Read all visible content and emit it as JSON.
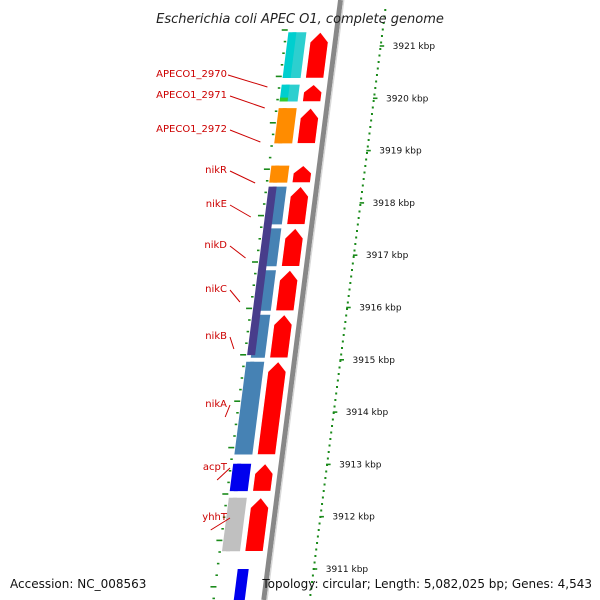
{
  "title": "Escherichia coli APEC O1, complete genome",
  "footer": {
    "accession": "Accession: NC_008563",
    "topology": "Topology: circular; Length: 5,082,025 bp; Genes: 4,543"
  },
  "genes": [
    {
      "name": "APECO1_2970",
      "start": 3920.35,
      "end": 3921.3
    },
    {
      "name": "APECO1_2971",
      "start": 3919.9,
      "end": 3920.3
    },
    {
      "name": "APECO1_2972",
      "start": 3919.1,
      "end": 3919.85
    },
    {
      "name": "nikR",
      "start": 3918.35,
      "end": 3918.75
    },
    {
      "name": "nikE",
      "start": 3917.55,
      "end": 3918.35
    },
    {
      "name": "nikD",
      "start": 3916.75,
      "end": 3917.55
    },
    {
      "name": "nikC",
      "start": 3915.9,
      "end": 3916.75
    },
    {
      "name": "nikB",
      "start": 3915.0,
      "end": 3915.9
    },
    {
      "name": "nikA",
      "start": 3913.15,
      "end": 3915.0
    },
    {
      "name": "acpT",
      "start": 3912.45,
      "end": 3913.05
    },
    {
      "name": "yhhT",
      "start": 3911.3,
      "end": 3912.4
    }
  ],
  "tracks": {
    "cog_outer": [
      {
        "start": 3920.35,
        "end": 3921.3,
        "color": "#2dcfcf"
      },
      {
        "start": 3919.9,
        "end": 3920.3,
        "color": "#2dcfcf"
      },
      {
        "start": 3919.1,
        "end": 3919.85,
        "color": "#ff8c00"
      },
      {
        "start": 3918.35,
        "end": 3918.75,
        "color": "#ff8c00"
      },
      {
        "start": 3917.55,
        "end": 3918.35,
        "color": "#4682b4"
      },
      {
        "start": 3916.75,
        "end": 3917.55,
        "color": "#4682b4"
      },
      {
        "start": 3915.9,
        "end": 3916.75,
        "color": "#4682b4"
      },
      {
        "start": 3915.0,
        "end": 3915.9,
        "color": "#4682b4"
      },
      {
        "start": 3913.15,
        "end": 3915.0,
        "color": "#4682b4"
      },
      {
        "start": 3912.45,
        "end": 3913.05,
        "color": "#0000ee"
      },
      {
        "start": 3911.3,
        "end": 3912.4,
        "color": "#c0c0c0"
      }
    ],
    "cog_inner": [
      {
        "start": 3920.35,
        "end": 3921.3,
        "color": "#00cfcf"
      },
      {
        "start": 3919.9,
        "end": 3920.3,
        "color": "#00cfcf"
      },
      {
        "start": 3919.9,
        "end": 3920.05,
        "color": "#32cd32"
      },
      {
        "start": 3919.1,
        "end": 3919.85,
        "color": "#ff8c00"
      },
      {
        "start": 3918.35,
        "end": 3918.75,
        "color": "#ff8c00"
      },
      {
        "start": 3915.05,
        "end": 3918.35,
        "color": "#483d8b"
      },
      {
        "start": 3913.15,
        "end": 3915.0,
        "color": "#4682b4"
      },
      {
        "start": 3912.45,
        "end": 3913.05,
        "color": "#0000ee"
      },
      {
        "start": 3911.3,
        "end": 3912.4,
        "color": "#c0c0c0"
      }
    ],
    "cds_forward": [
      {
        "start": 3920.35,
        "end": 3921.3
      },
      {
        "start": 3919.9,
        "end": 3920.3
      },
      {
        "start": 3919.1,
        "end": 3919.85
      },
      {
        "start": 3918.35,
        "end": 3918.75
      },
      {
        "start": 3917.55,
        "end": 3918.35
      },
      {
        "start": 3916.75,
        "end": 3917.55
      },
      {
        "start": 3915.9,
        "end": 3916.75
      },
      {
        "start": 3915.0,
        "end": 3915.9
      },
      {
        "start": 3913.15,
        "end": 3915.0
      },
      {
        "start": 3912.45,
        "end": 3913.05
      },
      {
        "start": 3911.3,
        "end": 3912.4
      }
    ],
    "bottom_block": {
      "start": 3910.6,
      "end": 3911.0,
      "color": "#0000ee"
    }
  },
  "kbp_ticks": [
    {
      "kb": 3921,
      "label": "3921 kbp"
    },
    {
      "kb": 3920,
      "label": "3920 kbp"
    },
    {
      "kb": 3919,
      "label": "3919 kbp"
    },
    {
      "kb": 3918,
      "label": "3918 kbp"
    },
    {
      "kb": 3917,
      "label": "3917 kbp"
    },
    {
      "kb": 3916,
      "label": "3916 kbp"
    },
    {
      "kb": 3915,
      "label": "3915 kbp"
    },
    {
      "kb": 3914,
      "label": "3914 kbp"
    },
    {
      "kb": 3913,
      "label": "3913 kbp"
    },
    {
      "kb": 3912,
      "label": "3912 kbp"
    },
    {
      "kb": 3911,
      "label": "3911 kbp"
    }
  ],
  "colors": {
    "cds": "#ff0000",
    "backbone": "#888888",
    "tick": "#1a8a1a",
    "label": "#cc0000"
  }
}
